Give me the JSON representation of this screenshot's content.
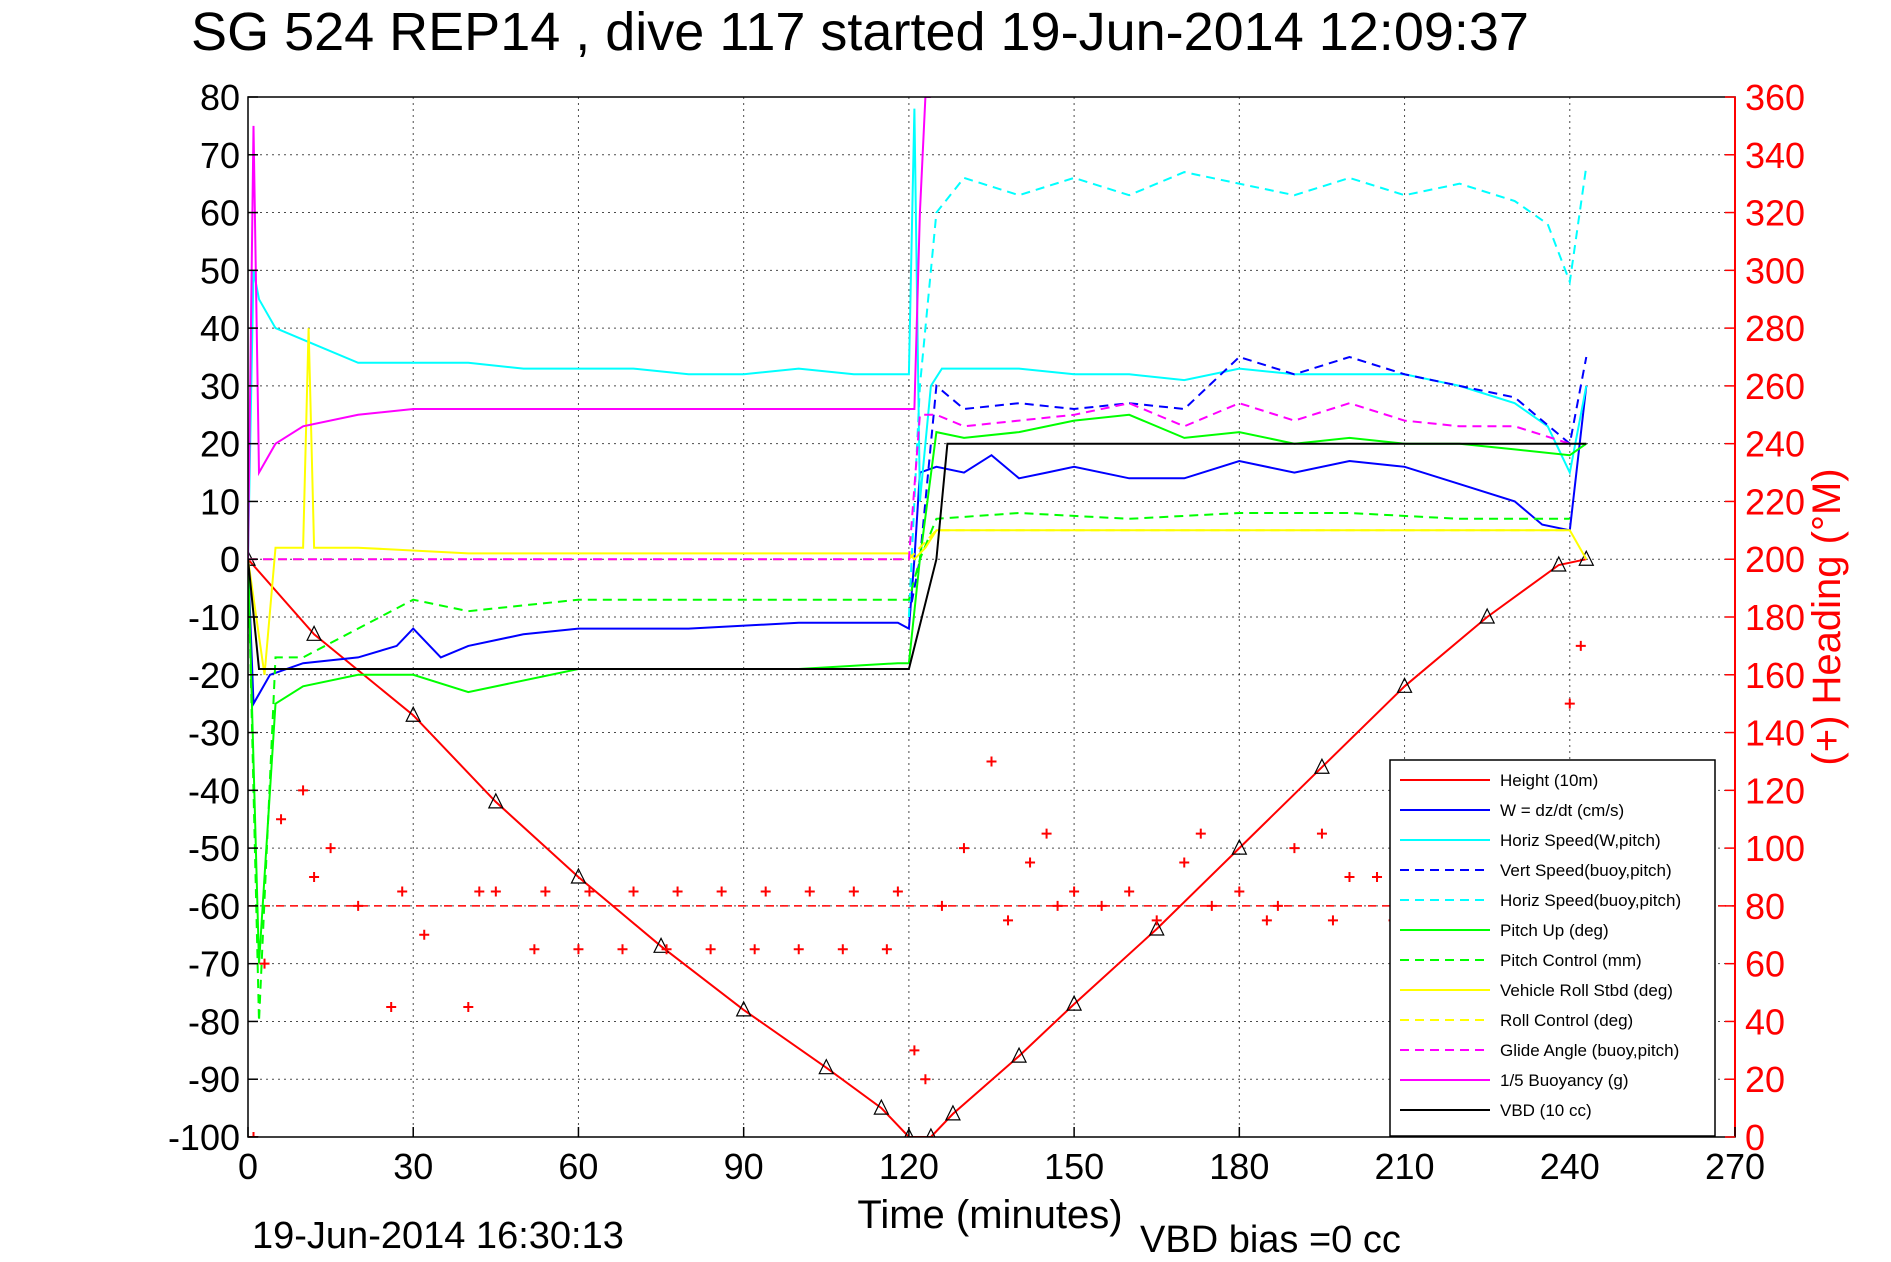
{
  "chart_data": {
    "type": "line",
    "title": "SG 524   REP14  , dive 117 started 19-Jun-2014 12:09:37",
    "xlabel": "Time (minutes)",
    "ylabel_right": "(+) Heading (°M)",
    "footer_left": "19-Jun-2014 16:30:13",
    "footer_right": "VBD bias =0 cc",
    "xlim": [
      0,
      270
    ],
    "ylim": [
      -100,
      80
    ],
    "y2lim": [
      0,
      360
    ],
    "xticks": [
      0,
      30,
      60,
      90,
      120,
      150,
      180,
      210,
      240,
      270
    ],
    "yticks": [
      -100,
      -90,
      -80,
      -70,
      -60,
      -50,
      -40,
      -30,
      -20,
      -10,
      0,
      10,
      20,
      30,
      40,
      50,
      60,
      70,
      80
    ],
    "y2ticks": [
      0,
      20,
      40,
      60,
      80,
      100,
      120,
      140,
      160,
      180,
      200,
      220,
      240,
      260,
      280,
      300,
      320,
      340,
      360
    ],
    "grid": true,
    "legend_position": "bottom-right",
    "colors": {
      "red": "#ff0000",
      "blue": "#0000ff",
      "cyan": "#00ffff",
      "green": "#00ff00",
      "yellow": "#ffff00",
      "magenta": "#ff00ff",
      "black": "#000000"
    },
    "series": [
      {
        "name": "Height (10m)",
        "color": "#ff0000",
        "style": "solid",
        "marker": "triangle",
        "x": [
          0,
          12,
          30,
          45,
          60,
          75,
          90,
          105,
          115,
          120,
          124,
          128,
          140,
          150,
          165,
          180,
          195,
          210,
          225,
          238,
          243
        ],
        "y": [
          0,
          -13,
          -27,
          -42,
          -55,
          -67,
          -78,
          -88,
          -95,
          -100,
          -100,
          -96,
          -86,
          -77,
          -64,
          -50,
          -36,
          -22,
          -10,
          -1,
          0
        ]
      },
      {
        "name": "W = dz/dt (cm/s)",
        "color": "#0000ff",
        "style": "solid",
        "x": [
          0,
          1,
          4,
          10,
          20,
          27,
          30,
          35,
          40,
          50,
          60,
          80,
          100,
          118,
          120,
          121,
          122,
          125,
          130,
          135,
          140,
          145,
          150,
          160,
          170,
          180,
          190,
          200,
          210,
          220,
          230,
          235,
          240,
          243
        ],
        "y": [
          0,
          -25,
          -20,
          -18,
          -17,
          -15,
          -12,
          -17,
          -15,
          -13,
          -12,
          -12,
          -11,
          -11,
          -12,
          0,
          15,
          16,
          15,
          18,
          14,
          15,
          16,
          14,
          14,
          17,
          15,
          17,
          16,
          13,
          10,
          6,
          5,
          30
        ]
      },
      {
        "name": "Horiz Speed(W,pitch)",
        "color": "#00ffff",
        "style": "solid",
        "x": [
          0,
          1,
          2,
          5,
          10,
          20,
          30,
          40,
          50,
          60,
          70,
          80,
          90,
          100,
          110,
          118,
          120,
          121,
          122,
          124,
          126,
          130,
          140,
          150,
          160,
          170,
          180,
          190,
          200,
          210,
          220,
          230,
          236,
          240,
          243
        ],
        "y": [
          0,
          50,
          45,
          40,
          38,
          34,
          34,
          34,
          33,
          33,
          33,
          32,
          32,
          33,
          32,
          32,
          32,
          78,
          10,
          30,
          33,
          33,
          33,
          32,
          32,
          31,
          33,
          32,
          32,
          32,
          30,
          27,
          23,
          15,
          30
        ]
      },
      {
        "name": "Vert Speed(buoy,pitch)",
        "color": "#0000ff",
        "style": "dashed",
        "x": [
          120,
          122,
          125,
          130,
          140,
          150,
          160,
          170,
          180,
          190,
          200,
          210,
          220,
          230,
          240,
          243
        ],
        "y": [
          -10,
          0,
          30,
          26,
          27,
          26,
          27,
          26,
          35,
          32,
          35,
          32,
          30,
          28,
          20,
          35
        ]
      },
      {
        "name": "Horiz Speed(buoy,pitch)",
        "color": "#00ffff",
        "style": "dashed",
        "x": [
          120,
          122,
          125,
          130,
          140,
          150,
          160,
          170,
          180,
          190,
          200,
          210,
          220,
          230,
          236,
          240,
          243
        ],
        "y": [
          -10,
          30,
          60,
          66,
          63,
          66,
          63,
          67,
          65,
          63,
          66,
          63,
          65,
          62,
          58,
          48,
          68
        ]
      },
      {
        "name": "Pitch Up (deg)",
        "color": "#00ff00",
        "style": "solid",
        "x": [
          0,
          2,
          5,
          10,
          20,
          30,
          40,
          60,
          80,
          100,
          118,
          120,
          122,
          125,
          130,
          140,
          150,
          160,
          170,
          180,
          190,
          200,
          210,
          220,
          230,
          240,
          243
        ],
        "y": [
          0,
          -70,
          -25,
          -22,
          -20,
          -20,
          -23,
          -19,
          -19,
          -19,
          -18,
          -18,
          0,
          22,
          21,
          22,
          24,
          25,
          21,
          22,
          20,
          21,
          20,
          20,
          19,
          18,
          20
        ]
      },
      {
        "name": "Pitch Control (mm)",
        "color": "#00ff00",
        "style": "dashed",
        "x": [
          0,
          2,
          5,
          10,
          30,
          40,
          50,
          60,
          80,
          100,
          120,
          122,
          125,
          140,
          160,
          180,
          200,
          220,
          240
        ],
        "y": [
          0,
          -80,
          -17,
          -17,
          -7,
          -9,
          -8,
          -7,
          -7,
          -7,
          -7,
          0,
          7,
          8,
          7,
          8,
          8,
          7,
          7
        ]
      },
      {
        "name": "Vehicle Roll Stbd (deg)",
        "color": "#ffff00",
        "style": "solid",
        "x": [
          0,
          3,
          5,
          10,
          11,
          12,
          20,
          40,
          60,
          80,
          100,
          120,
          121,
          123,
          125,
          140,
          160,
          180,
          200,
          220,
          240,
          243
        ],
        "y": [
          0,
          -20,
          2,
          2,
          40,
          2,
          2,
          1,
          1,
          1,
          1,
          1,
          0,
          2,
          5,
          5,
          5,
          5,
          5,
          5,
          5,
          0
        ]
      },
      {
        "name": "Roll Control (deg)",
        "color": "#ffff00",
        "style": "dashed",
        "x": [
          0,
          120,
          125,
          240
        ],
        "y": [
          0,
          0,
          5,
          5
        ]
      },
      {
        "name": "Glide Angle (buoy,pitch)",
        "color": "#ff00ff",
        "style": "dashed",
        "x": [
          0,
          120,
          122,
          125,
          130,
          140,
          150,
          160,
          170,
          180,
          190,
          200,
          210,
          220,
          230,
          240
        ],
        "y": [
          0,
          0,
          25,
          25,
          23,
          24,
          25,
          27,
          23,
          27,
          24,
          27,
          24,
          23,
          23,
          20
        ]
      },
      {
        "name": "1/5 Buoyancy (g)",
        "color": "#ff00ff",
        "style": "solid",
        "x": [
          0,
          1,
          2,
          5,
          10,
          20,
          30,
          40,
          60,
          80,
          100,
          120,
          121,
          122,
          123,
          124
        ],
        "y": [
          0,
          75,
          15,
          20,
          23,
          25,
          26,
          26,
          26,
          26,
          26,
          26,
          26,
          60,
          80,
          80
        ]
      },
      {
        "name": "VBD (10 cc)",
        "color": "#000000",
        "style": "solid",
        "x": [
          0,
          2,
          5,
          60,
          120,
          125,
          127,
          180,
          240,
          243
        ],
        "y": [
          0,
          -19,
          -19,
          -19,
          -19,
          0,
          20,
          20,
          20,
          20
        ]
      },
      {
        "name": "Heading",
        "color": "#ff0000",
        "style": "points",
        "marker": "plus",
        "axis": "right",
        "x": [
          1,
          3,
          6,
          10,
          12,
          15,
          20,
          26,
          28,
          32,
          40,
          42,
          45,
          52,
          54,
          60,
          62,
          68,
          70,
          76,
          78,
          84,
          86,
          92,
          94,
          100,
          102,
          108,
          110,
          116,
          118,
          121,
          123,
          126,
          130,
          135,
          138,
          142,
          145,
          147,
          150,
          155,
          160,
          165,
          170,
          173,
          175,
          180,
          185,
          187,
          190,
          195,
          197,
          200,
          205,
          208,
          240,
          242
        ],
        "y": [
          0,
          60,
          110,
          120,
          90,
          100,
          80,
          45,
          85,
          70,
          45,
          85,
          85,
          65,
          85,
          65,
          85,
          65,
          85,
          65,
          85,
          65,
          85,
          65,
          85,
          65,
          85,
          65,
          85,
          65,
          85,
          30,
          20,
          80,
          100,
          130,
          75,
          95,
          105,
          80,
          85,
          80,
          85,
          75,
          95,
          105,
          80,
          85,
          75,
          80,
          100,
          105,
          75,
          90,
          90,
          75,
          150,
          170
        ]
      }
    ],
    "reference_line": {
      "color": "#ff0000",
      "style": "dashed",
      "y": -60
    }
  }
}
